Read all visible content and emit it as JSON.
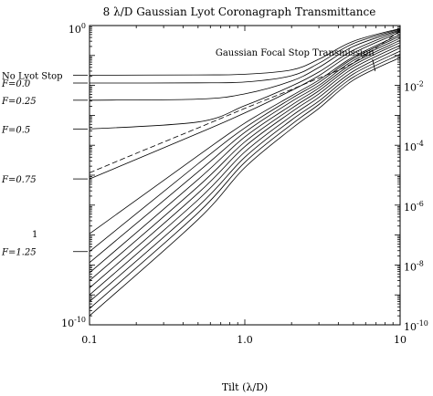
{
  "chart_data": {
    "type": "line",
    "title": "8 λ/D Gaussian Lyot Coronagraph Transmittance",
    "xlabel": "Tilt (λ/D)",
    "x_scale": "log",
    "y_scale": "log",
    "xlim": [
      0.1,
      10
    ],
    "ylim": [
      1e-10,
      1
    ],
    "grid": false,
    "x_ticks": [
      {
        "value": 0.1,
        "label": "0.1"
      },
      {
        "value": 1,
        "label": "1.0"
      },
      {
        "value": 10,
        "label": "10"
      }
    ],
    "y_ticks_left": [
      {
        "value": 1,
        "base": "10",
        "exp": "0"
      },
      {
        "value": 1e-10,
        "base": "10",
        "exp": "-10"
      }
    ],
    "y_ticks_right": [
      {
        "value": 0.01,
        "base": "10",
        "exp": "-2"
      },
      {
        "value": 0.0001,
        "base": "10",
        "exp": "-4"
      },
      {
        "value": 1e-06,
        "base": "10",
        "exp": "-6"
      },
      {
        "value": 1e-08,
        "base": "10",
        "exp": "-8"
      },
      {
        "value": 1e-10,
        "base": "10",
        "exp": "-10"
      }
    ],
    "curve_labels": [
      {
        "text": "No Lyot Stop",
        "level": 0.022,
        "style": "upright"
      },
      {
        "text": "F=0.0",
        "level": 0.012,
        "style": "italic"
      },
      {
        "text": "F=0.25",
        "level": 0.0032,
        "style": "italic"
      },
      {
        "text": "F=0.5",
        "level": 0.00035,
        "style": "italic"
      },
      {
        "text": "F=0.75",
        "level": 7.5e-06,
        "style": "italic"
      },
      {
        "text": "F=1.25",
        "level": 2.8e-08,
        "style": "italic"
      }
    ],
    "side_marks": [
      {
        "text": "1",
        "level": 1.1e-07
      }
    ],
    "annotation": {
      "text": "Gaussian Focal Stop Transmission",
      "x": 2.1,
      "y": 0.08
    },
    "series": [
      {
        "x": [
          0.1,
          0.5,
          1.0,
          2.0,
          3.0,
          5.0,
          10.0
        ],
        "y": [
          0.022,
          0.0224,
          0.0235,
          0.033,
          0.075,
          0.3,
          0.8
        ]
      },
      {
        "x": [
          0.1,
          0.5,
          1.0,
          2.0,
          3.0,
          5.0,
          10.0
        ],
        "y": [
          0.012,
          0.0122,
          0.013,
          0.021,
          0.055,
          0.25,
          0.76
        ]
      },
      {
        "x": [
          0.1,
          0.5,
          1.0,
          2.0,
          3.0,
          5.0,
          10.0
        ],
        "y": [
          0.0032,
          0.0035,
          0.0052,
          0.014,
          0.04,
          0.2,
          0.72
        ]
      },
      {
        "x": [
          0.1,
          0.5,
          1.0,
          2.0,
          3.0,
          5.0,
          10.0
        ],
        "y": [
          0.00035,
          0.0006,
          0.0021,
          0.0095,
          0.028,
          0.15,
          0.68
        ]
      },
      {
        "x": [
          0.1,
          0.5,
          1.0,
          2.0,
          3.0,
          5.0,
          10.0
        ],
        "y": [
          7.5e-06,
          0.00025,
          0.0012,
          0.0068,
          0.021,
          0.12,
          0.6
        ]
      },
      {
        "x": [
          0.1,
          0.5,
          1.0,
          2.0,
          3.0,
          5.0,
          10.0
        ],
        "y": [
          1.1e-07,
          4.5e-05,
          0.00055,
          0.0045,
          0.015,
          0.09,
          0.5
        ]
      },
      {
        "x": [
          0.1,
          0.5,
          1.0,
          2.0,
          3.0,
          5.0,
          10.0
        ],
        "y": [
          2.8e-08,
          2.4e-05,
          0.00038,
          0.0037,
          0.0125,
          0.08,
          0.44
        ]
      },
      {
        "x": [
          0.1,
          0.5,
          1.0,
          2.0,
          3.0,
          5.0,
          10.0
        ],
        "y": [
          1.2e-08,
          1.3e-05,
          0.00027,
          0.0029,
          0.01,
          0.068,
          0.38
        ]
      },
      {
        "x": [
          0.1,
          0.5,
          1.0,
          2.0,
          3.0,
          5.0,
          10.0
        ],
        "y": [
          5.5e-09,
          7.2e-06,
          0.00019,
          0.0022,
          0.0082,
          0.056,
          0.32
        ]
      },
      {
        "x": [
          0.1,
          0.5,
          1.0,
          2.0,
          3.0,
          5.0,
          10.0
        ],
        "y": [
          3e-09,
          4.2e-06,
          0.00013,
          0.0017,
          0.0066,
          0.047,
          0.27
        ]
      },
      {
        "x": [
          0.1,
          0.5,
          1.0,
          2.0,
          3.0,
          5.0,
          10.0
        ],
        "y": [
          1.7e-09,
          2.5e-06,
          9e-05,
          0.0013,
          0.0052,
          0.038,
          0.22
        ]
      },
      {
        "x": [
          0.1,
          0.5,
          1.0,
          2.0,
          3.0,
          5.0,
          10.0
        ],
        "y": [
          1e-09,
          1.5e-06,
          6e-05,
          0.00095,
          0.004,
          0.03,
          0.18
        ]
      },
      {
        "x": [
          0.1,
          0.5,
          1.0,
          2.0,
          3.0,
          5.0,
          10.0
        ],
        "y": [
          6e-10,
          9e-07,
          4e-05,
          0.0007,
          0.003,
          0.024,
          0.14
        ]
      },
      {
        "x": [
          0.1,
          0.5,
          1.0,
          2.0,
          3.0,
          5.0,
          10.0
        ],
        "y": [
          3.5e-10,
          5.5e-07,
          2.7e-05,
          0.0005,
          0.0023,
          0.019,
          0.11
        ]
      },
      {
        "x": [
          0.1,
          0.5,
          1.0,
          2.0,
          3.0,
          5.0,
          10.0
        ],
        "y": [
          2e-10,
          3.3e-07,
          1.8e-05,
          0.00036,
          0.0017,
          0.015,
          0.085
        ]
      },
      {
        "x": [
          0.1,
          0.2,
          0.5,
          1.0,
          2.0,
          3.0,
          5.0,
          10.0
        ],
        "y": [
          1.2e-05,
          5.4e-05,
          0.00038,
          0.0017,
          0.0073,
          0.0176,
          0.057,
          0.67
        ],
        "dash": "6,3"
      }
    ]
  }
}
